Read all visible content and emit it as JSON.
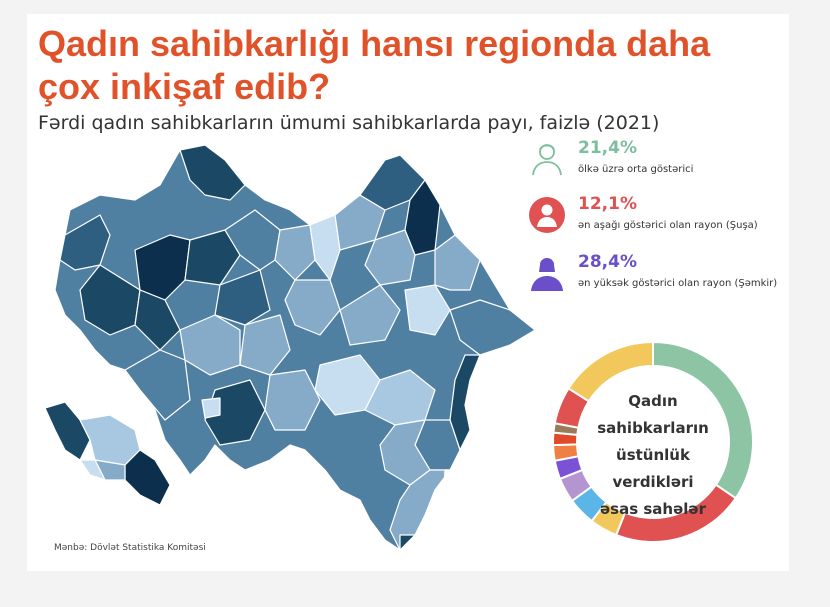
{
  "title": "Qadın sahibkarlığı hansı regionda daha çox inkişaf edib?",
  "subtitle": "Fərdi qadın sahibkarların ümumi sahibkarlarda payı, faizlə (2021)",
  "stats": [
    {
      "value": "21,4%",
      "label": "ölkə üzrə orta göstərici",
      "color": "#7cbf9c",
      "icon": "woman-outline-icon"
    },
    {
      "value": "12,1%",
      "label": "ən aşağı göstərici olan rayon (Şuşa)",
      "color": "#e05252",
      "icon": "woman-red-circle-icon"
    },
    {
      "value": "28,4%",
      "label": "ən yüksək göstərici olan rayon (Şəmkir)",
      "color": "#6a4fc8",
      "icon": "woman-purple-icon"
    }
  ],
  "donut": {
    "center_text": [
      "Qadın",
      "sahibkarların",
      "üstünlük verdikləri",
      "əsas sahələr"
    ],
    "colors": [
      "#8dc4a4",
      "#e05252",
      "#f2c75c",
      "#5bb5e6",
      "#b495d0",
      "#7b52d6",
      "#ef7f43",
      "#e04a2a",
      "#9a7a5a",
      "#e05252",
      "#f2c75c"
    ]
  },
  "source": "Mənbə: Dövlət Statistika Komitəsi",
  "map": {
    "colors": {
      "darkest": "#0b2f4c",
      "dark": "#1b4965",
      "mid_dark": "#2f5f80",
      "mid": "#4f7fa1",
      "light": "#86abc9",
      "lighter": "#a8c7e0",
      "lightest": "#c7def0"
    }
  }
}
